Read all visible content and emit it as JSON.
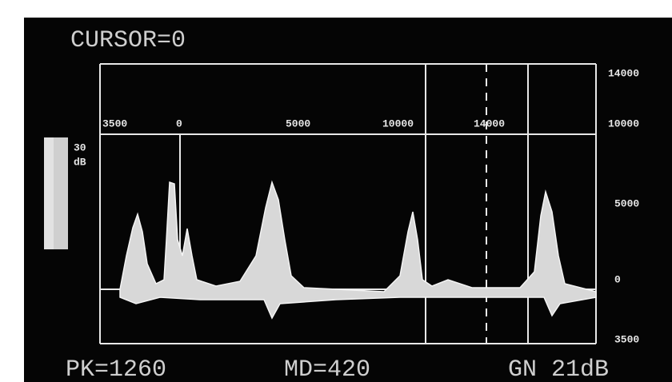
{
  "screen": {
    "cursor_label": "CURSOR=0",
    "top_scale": [
      "3500",
      "0",
      "5000",
      "10000",
      "14000"
    ],
    "right_scale": [
      "14000",
      "10000",
      "5000",
      "0",
      "3500"
    ],
    "gain_scale": [
      "30",
      "dB"
    ],
    "readouts": {
      "peak": "PK=1260",
      "mean": "MD=420",
      "gain": "GN 21dB"
    }
  }
}
